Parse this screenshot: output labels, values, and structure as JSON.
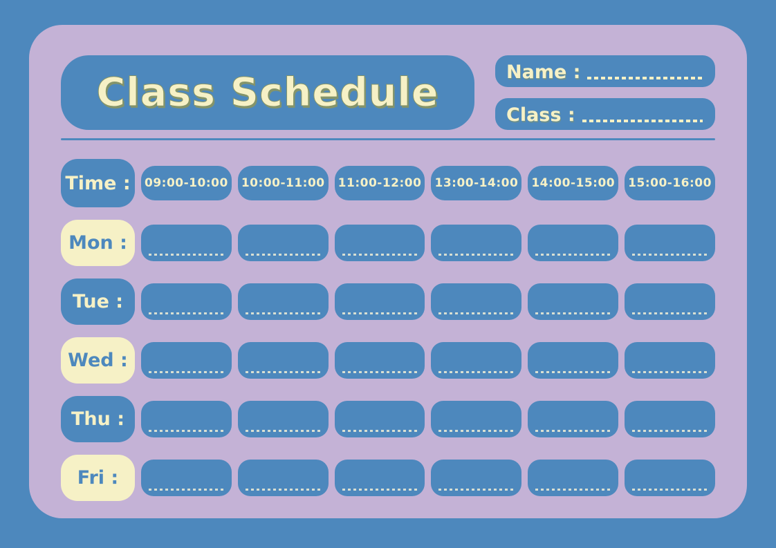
{
  "title": "Class Schedule",
  "fields": {
    "name_label": "Name :",
    "class_label": "Class :"
  },
  "schedule": {
    "time_header": "Time :",
    "time_slots": [
      "09:00-10:00",
      "10:00-11:00",
      "11:00-12:00",
      "13:00-14:00",
      "14:00-15:00",
      "15:00-16:00"
    ],
    "days": [
      {
        "label": "Mon :",
        "variant": "cream"
      },
      {
        "label": "Tue :",
        "variant": "blue"
      },
      {
        "label": "Wed :",
        "variant": "cream"
      },
      {
        "label": "Thu :",
        "variant": "blue"
      },
      {
        "label": "Fri :",
        "variant": "cream"
      }
    ],
    "slots_per_day": 6
  },
  "colors": {
    "background_blue": "#4d88bd",
    "card_lavender": "#c4b2d6",
    "cream": "#f6f1c6",
    "title_outline_olive": "#84946a"
  }
}
